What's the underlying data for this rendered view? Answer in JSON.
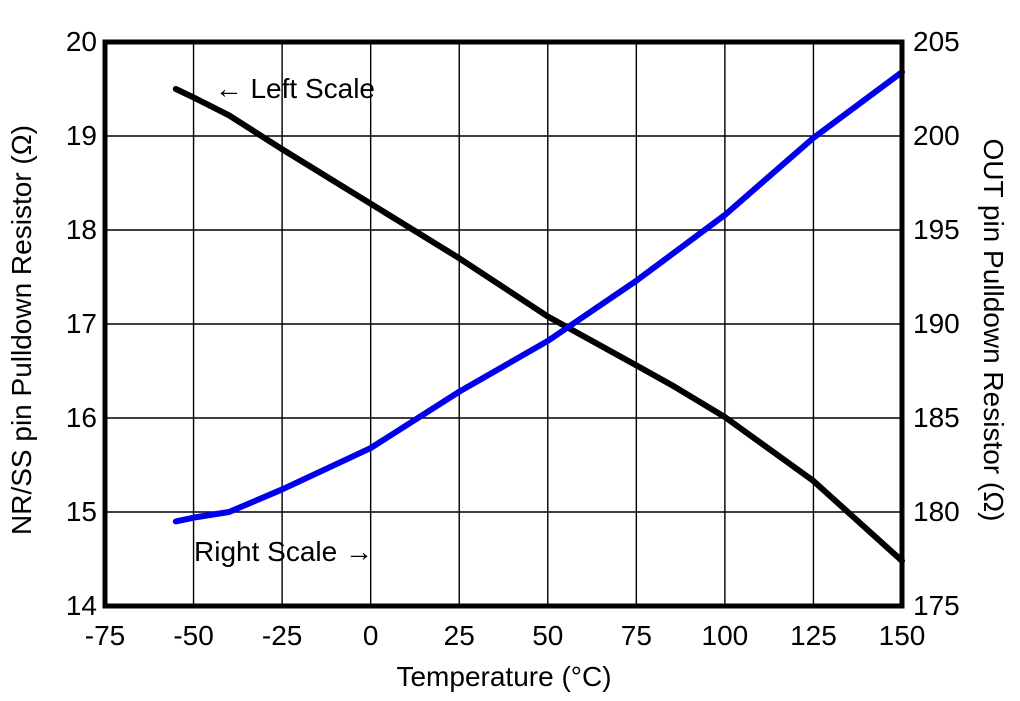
{
  "chart_data": {
    "type": "line",
    "title": "",
    "xlabel": "Temperature (°C)",
    "ylabel_left": "NR/SS pin Pulldown Resistor (Ω)",
    "ylabel_right": "OUT pin Pulldown Resistor (Ω)",
    "xlim": [
      -75,
      150
    ],
    "ylim_left": [
      14,
      20
    ],
    "ylim_right": [
      175,
      205
    ],
    "x_ticks": [
      -75,
      -50,
      -25,
      0,
      25,
      50,
      75,
      100,
      125,
      150
    ],
    "y_ticks_left": [
      14,
      15,
      16,
      17,
      18,
      19,
      20
    ],
    "y_ticks_right": [
      175,
      180,
      185,
      190,
      195,
      200,
      205
    ],
    "grid": true,
    "grid_color": "#000000",
    "border_color": "#000000",
    "legend_position": "none",
    "annotations": [
      {
        "text": "← Left Scale",
        "x": -21.4,
        "y": 19.5,
        "axis": "left"
      },
      {
        "text": "Right Scale →",
        "x": -24.6,
        "y": 14.57,
        "axis": "left"
      }
    ],
    "series": [
      {
        "name": "NR/SS pin Pulldown Resistor",
        "key": "nrss-pulldown",
        "scale_label": "Left Scale",
        "axis": "left",
        "color": "#000000",
        "x": [
          -55,
          -50,
          -40,
          -25,
          0,
          25,
          50,
          75,
          85,
          100,
          125,
          150
        ],
        "y": [
          19.5,
          19.41,
          19.22,
          18.86,
          18.28,
          17.7,
          17.08,
          16.56,
          16.35,
          16.01,
          15.33,
          14.48
        ]
      },
      {
        "name": "OUT pin Pulldown Resistor",
        "key": "out-pulldown",
        "scale_label": "Right Scale",
        "axis": "right",
        "color": "#0000EE",
        "x": [
          -55,
          -50,
          -40,
          -25,
          0,
          25,
          50,
          75,
          100,
          125,
          150
        ],
        "y": [
          179.5,
          179.7,
          180.0,
          181.2,
          183.4,
          186.4,
          189.1,
          192.3,
          195.8,
          199.9,
          203.4
        ]
      }
    ]
  }
}
